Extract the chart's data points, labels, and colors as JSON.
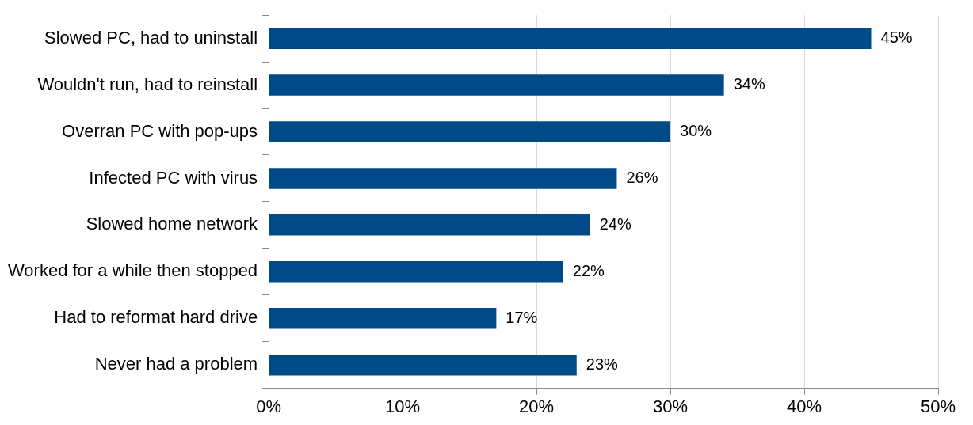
{
  "chart_data": {
    "type": "bar",
    "orientation": "horizontal",
    "categories": [
      "Slowed PC, had to uninstall",
      "Wouldn't run, had to reinstall",
      "Overran PC with pop-ups",
      "Infected PC with virus",
      "Slowed home network",
      "Worked for a while then stopped",
      "Had to reformat hard drive",
      "Never had a problem"
    ],
    "values": [
      45,
      34,
      30,
      26,
      24,
      22,
      17,
      23
    ],
    "value_labels": [
      "45%",
      "34%",
      "30%",
      "26%",
      "24%",
      "22%",
      "17%",
      "23%"
    ],
    "color": "#004b87",
    "xlim": [
      0,
      50
    ],
    "xticks": [
      {
        "value": 0,
        "label": "0%"
      },
      {
        "value": 10,
        "label": "10%"
      },
      {
        "value": 20,
        "label": "20%"
      },
      {
        "value": 30,
        "label": "30%"
      },
      {
        "value": 40,
        "label": "40%"
      },
      {
        "value": 50,
        "label": "50%"
      }
    ],
    "grid": "x"
  }
}
